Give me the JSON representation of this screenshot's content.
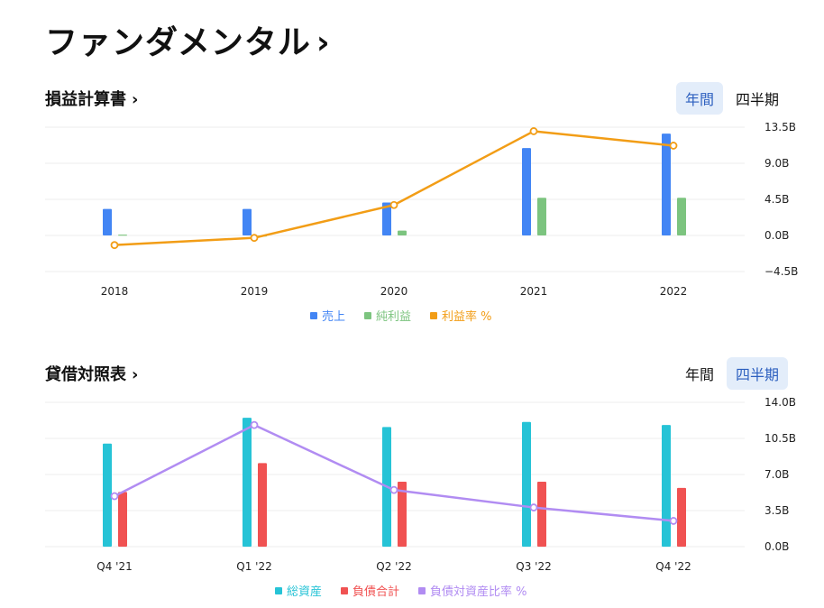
{
  "page": {
    "title": "ファンダメンタル",
    "title_chevron": "›"
  },
  "income": {
    "title": "損益計算書",
    "chevron": "›",
    "toggle": [
      {
        "label": "年間",
        "active": true
      },
      {
        "label": "四半期",
        "active": false
      }
    ]
  },
  "balance": {
    "title": "貸借対照表",
    "chevron": "›",
    "toggle": [
      {
        "label": "年間",
        "active": false
      },
      {
        "label": "四半期",
        "active": true
      }
    ]
  },
  "chart_data": [
    {
      "type": "bar",
      "categories": [
        "2018",
        "2019",
        "2020",
        "2021",
        "2022"
      ],
      "y_ticks": [
        "13.5B",
        "9.0B",
        "4.5B",
        "0.0B",
        "−4.5B"
      ],
      "ylim": [
        -4.5,
        13.5
      ],
      "grid": true,
      "legend_position": "bottom-center",
      "series": [
        {
          "name": "売上",
          "kind": "bar",
          "color": "#4285f4",
          "values": [
            3.3,
            3.3,
            4.1,
            10.9,
            12.7
          ]
        },
        {
          "name": "純利益",
          "kind": "bar",
          "color": "#7cc47f",
          "values": [
            0.1,
            0.0,
            0.6,
            4.7,
            4.7
          ]
        },
        {
          "name": "利益率 %",
          "kind": "line",
          "color": "#f29d16",
          "values": [
            -1.2,
            -0.3,
            3.8,
            13.0,
            11.2
          ]
        }
      ]
    },
    {
      "type": "bar",
      "categories": [
        "Q4 '21",
        "Q1 '22",
        "Q2 '22",
        "Q3 '22",
        "Q4 '22"
      ],
      "y_ticks": [
        "14.0B",
        "10.5B",
        "7.0B",
        "3.5B",
        "0.0B"
      ],
      "ylim": [
        0,
        14
      ],
      "grid": true,
      "legend_position": "bottom-center",
      "series": [
        {
          "name": "総資産",
          "kind": "bar",
          "color": "#26c3d6",
          "values": [
            10.0,
            12.5,
            11.6,
            12.1,
            11.8
          ]
        },
        {
          "name": "負債合計",
          "kind": "bar",
          "color": "#f05252",
          "values": [
            5.3,
            8.1,
            6.3,
            6.3,
            5.7
          ]
        },
        {
          "name": "負債対資産比率 %",
          "kind": "line",
          "color": "#b18cf2",
          "values": [
            4.9,
            11.8,
            5.5,
            3.8,
            2.5
          ]
        }
      ]
    }
  ]
}
